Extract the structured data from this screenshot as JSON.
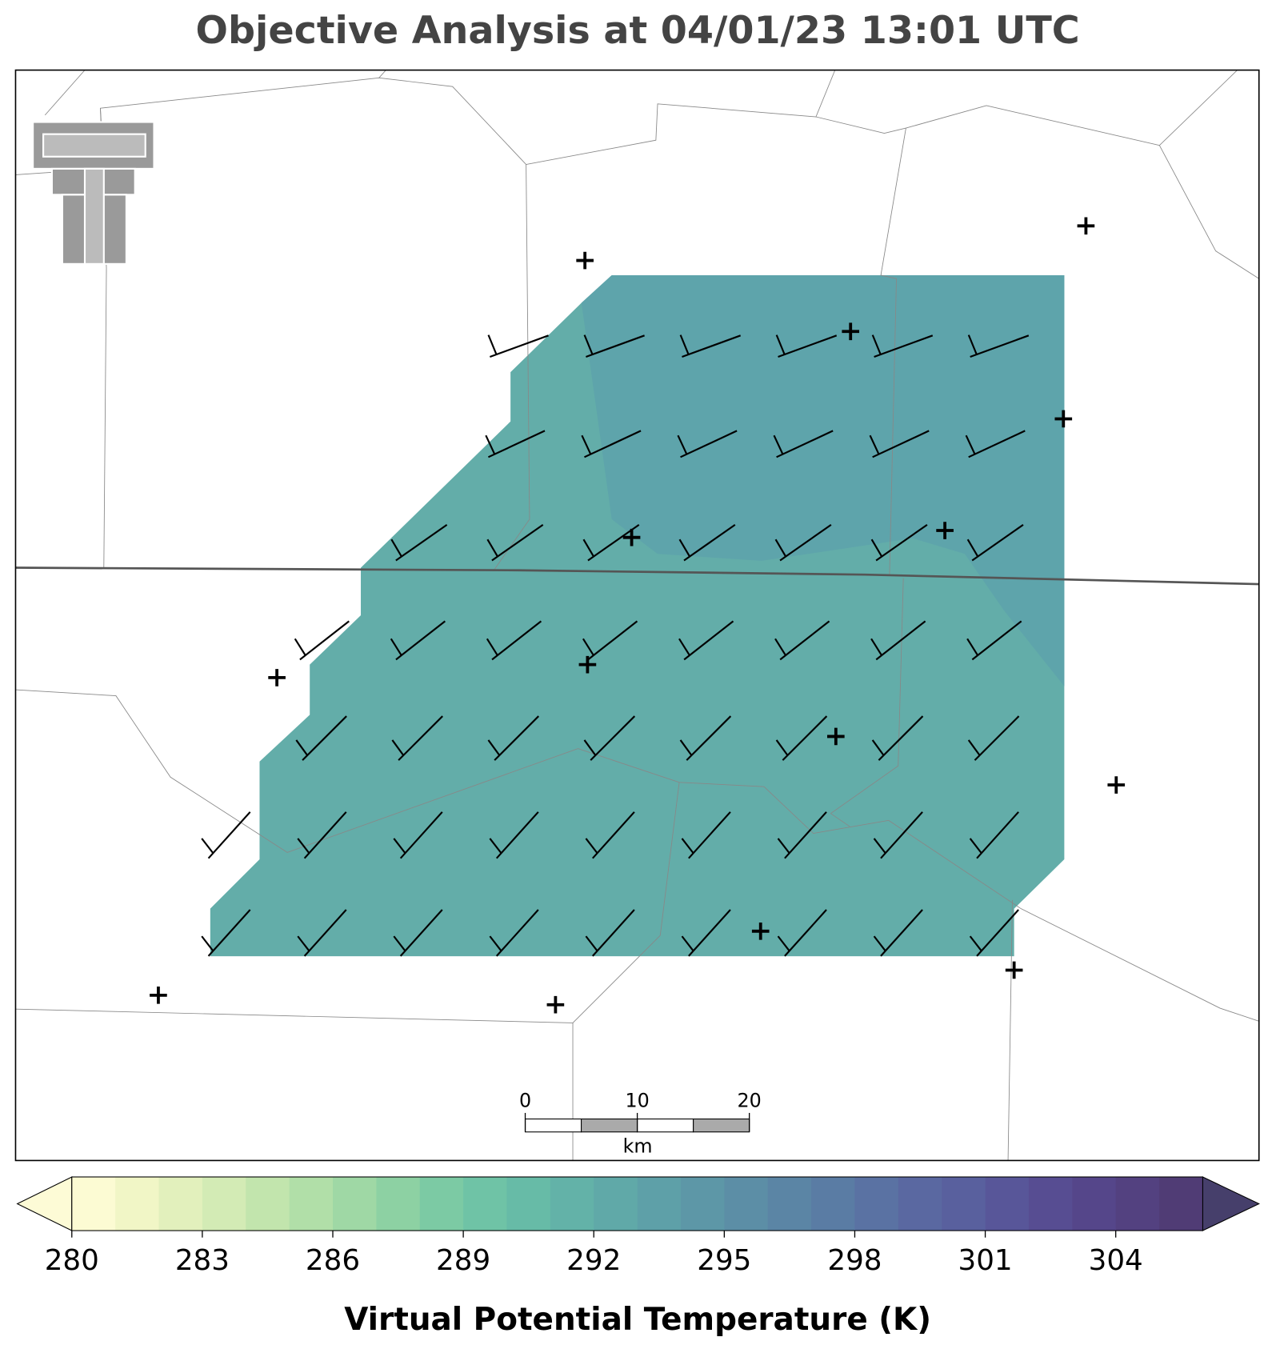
{
  "title": "Objective Analysis at 04/01/23 13:01 UTC",
  "colorbar": {
    "label": "Virtual Potential Temperature (K)",
    "min": 280,
    "max": 306,
    "ticks": [
      280,
      283,
      286,
      289,
      292,
      295,
      298,
      301,
      304
    ],
    "colors": [
      "#fcfbd3",
      "#f1f6c6",
      "#e2f0bc",
      "#d3ebb5",
      "#c2e5ad",
      "#b1dfa8",
      "#9fd8a5",
      "#8dd1a3",
      "#7ccaa4",
      "#6fc3a6",
      "#67bba7",
      "#63b2a8",
      "#60a9a8",
      "#5ea0a8",
      "#5d97a7",
      "#5c8ea6",
      "#5b85a5",
      "#5a7ca4",
      "#5a72a3",
      "#5a68a1",
      "#59609e",
      "#585699",
      "#574d92",
      "#55468a",
      "#534180",
      "#503c75"
    ],
    "under_color": "#fdfbd6",
    "over_color": "#463f6b"
  },
  "scale_bar": {
    "ticks": [
      0,
      10,
      20
    ],
    "unit": "km"
  }
}
